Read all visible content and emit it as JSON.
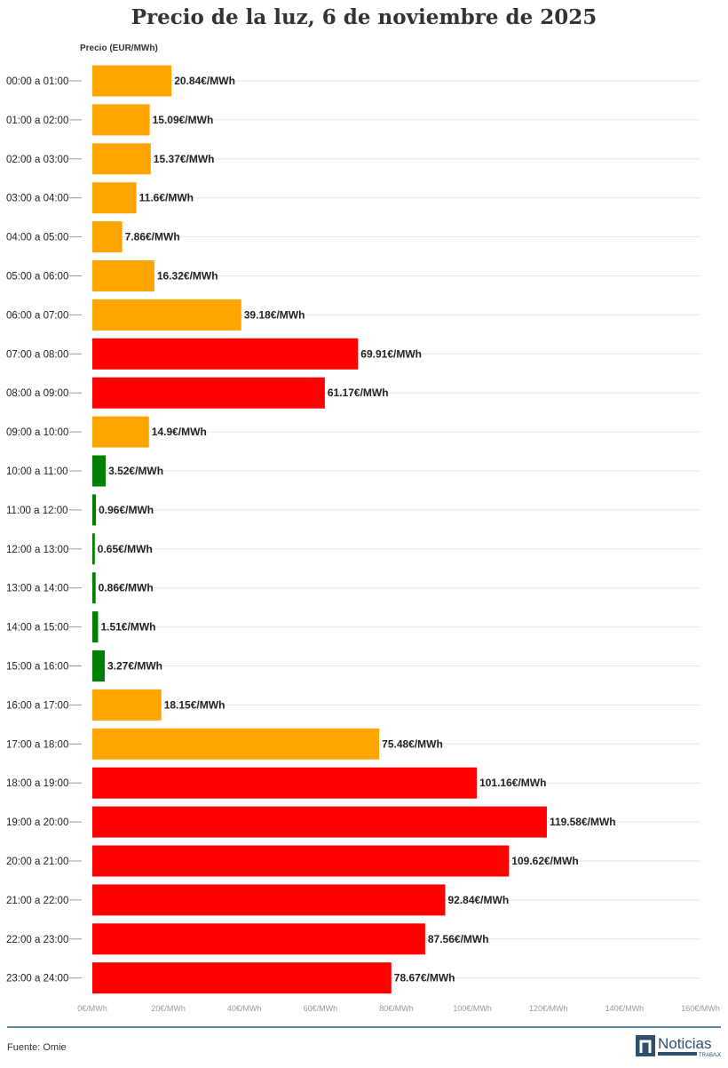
{
  "chart_data": {
    "type": "bar",
    "orientation": "horizontal",
    "title": "Precio de la luz, 6 de noviembre de 2025",
    "ylabel": "Precio (EUR/MWh)",
    "xlim": [
      0,
      160
    ],
    "xticks": [
      "0€/MWh",
      "20€/MWh",
      "40€/MWh",
      "60€/MWh",
      "80€/MWh",
      "100€/MWh",
      "120€/MWh",
      "140€/MWh",
      "160€/MWh"
    ],
    "grid": true,
    "value_suffix": "€/MWh",
    "categories": [
      "00:00 a 01:00",
      "01:00 a 02:00",
      "02:00 a 03:00",
      "03:00 a 04:00",
      "04:00 a 05:00",
      "05:00 a 06:00",
      "06:00 a 07:00",
      "07:00 a 08:00",
      "08:00 a 09:00",
      "09:00 a 10:00",
      "10:00 a 11:00",
      "11:00 a 12:00",
      "12:00 a 13:00",
      "13:00 a 14:00",
      "14:00 a 15:00",
      "15:00 a 16:00",
      "16:00 a 17:00",
      "17:00 a 18:00",
      "18:00 a 19:00",
      "19:00 a 20:00",
      "20:00 a 21:00",
      "21:00 a 22:00",
      "22:00 a 23:00",
      "23:00 a 24:00"
    ],
    "values": [
      20.84,
      15.09,
      15.37,
      11.6,
      7.86,
      16.32,
      39.18,
      69.91,
      61.17,
      14.9,
      3.52,
      0.96,
      0.65,
      0.86,
      1.51,
      3.27,
      18.15,
      75.48,
      101.16,
      119.58,
      109.62,
      92.84,
      87.56,
      78.67
    ],
    "data_labels": [
      "20.84€/MWh",
      "15.09€/MWh",
      "15.37€/MWh",
      "11.6€/MWh",
      "7.86€/MWh",
      "16.32€/MWh",
      "39.18€/MWh",
      "69.91€/MWh",
      "61.17€/MWh",
      "14.9€/MWh",
      "3.52€/MWh",
      "0.96€/MWh",
      "0.65€/MWh",
      "0.86€/MWh",
      "1.51€/MWh",
      "3.27€/MWh",
      "18.15€/MWh",
      "75.48€/MWh",
      "101.16€/MWh",
      "119.58€/MWh",
      "109.62€/MWh",
      "92.84€/MWh",
      "87.56€/MWh",
      "78.67€/MWh"
    ],
    "bar_colors": [
      "orange",
      "orange",
      "orange",
      "orange",
      "orange",
      "orange",
      "orange",
      "red",
      "red",
      "orange",
      "green",
      "green",
      "green",
      "green",
      "green",
      "green",
      "orange",
      "orange",
      "red",
      "red",
      "red",
      "red",
      "red",
      "red"
    ],
    "colors": {
      "orange": "#FFA500",
      "red": "#FF0000",
      "green": "#008000"
    }
  },
  "footer": {
    "source": "Fuente: Omie",
    "logo_text": "Noticias",
    "logo_sub": "TRABAJO"
  }
}
